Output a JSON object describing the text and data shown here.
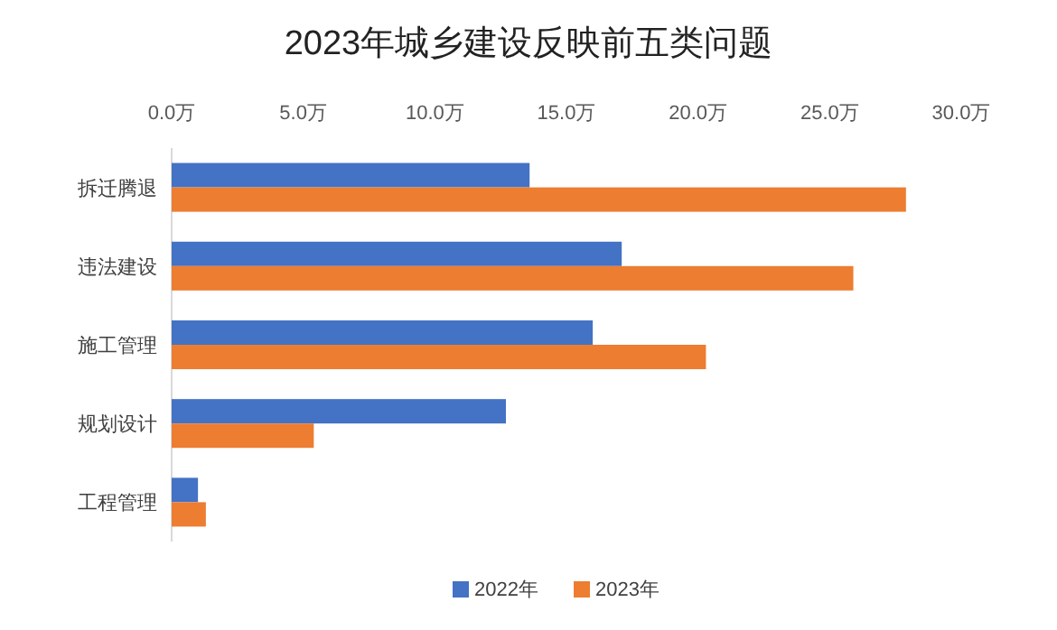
{
  "chart_data": {
    "type": "bar",
    "orientation": "horizontal",
    "title": "2023年城乡建设反映前五类问题",
    "categories": [
      "拆迁腾退",
      "违法建设",
      "施工管理",
      "规划设计",
      "工程管理"
    ],
    "series": [
      {
        "name": "2022年",
        "color": "#4472c4",
        "values": [
          13.6,
          17.1,
          16.0,
          12.7,
          1.0
        ]
      },
      {
        "name": "2023年",
        "color": "#ed7d31",
        "values": [
          27.9,
          25.9,
          20.3,
          5.4,
          1.3
        ]
      }
    ],
    "xlim": [
      0,
      30
    ],
    "xticks": [
      {
        "value": 0,
        "label": "0.0万"
      },
      {
        "value": 5,
        "label": "5.0万"
      },
      {
        "value": 10,
        "label": "10.0万"
      },
      {
        "value": 15,
        "label": "15.0万"
      },
      {
        "value": 20,
        "label": "20.0万"
      },
      {
        "value": 25,
        "label": "25.0万"
      },
      {
        "value": 30,
        "label": "30.0万"
      }
    ],
    "grid": false,
    "legend": "bottom"
  }
}
